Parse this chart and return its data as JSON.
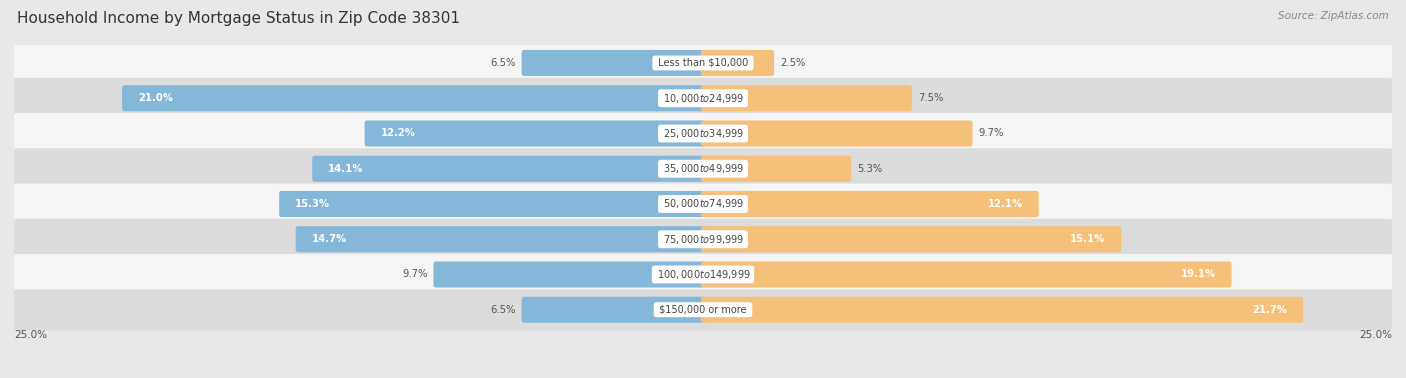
{
  "title": "Household Income by Mortgage Status in Zip Code 38301",
  "source": "Source: ZipAtlas.com",
  "categories": [
    "Less than $10,000",
    "$10,000 to $24,999",
    "$25,000 to $34,999",
    "$35,000 to $49,999",
    "$50,000 to $74,999",
    "$75,000 to $99,999",
    "$100,000 to $149,999",
    "$150,000 or more"
  ],
  "without_mortgage": [
    6.5,
    21.0,
    12.2,
    14.1,
    15.3,
    14.7,
    9.7,
    6.5
  ],
  "with_mortgage": [
    2.5,
    7.5,
    9.7,
    5.3,
    12.1,
    15.1,
    19.1,
    21.7
  ],
  "color_without": "#85B8D8",
  "color_with": "#F5C07A",
  "axis_limit": 25.0,
  "bg_color": "#e8e8e8",
  "row_bg_even": "#f5f5f5",
  "row_bg_odd": "#dcdcdc",
  "title_color": "#333333",
  "source_color": "#888888",
  "label_dark_color": "#555555",
  "label_white_color": "#ffffff"
}
